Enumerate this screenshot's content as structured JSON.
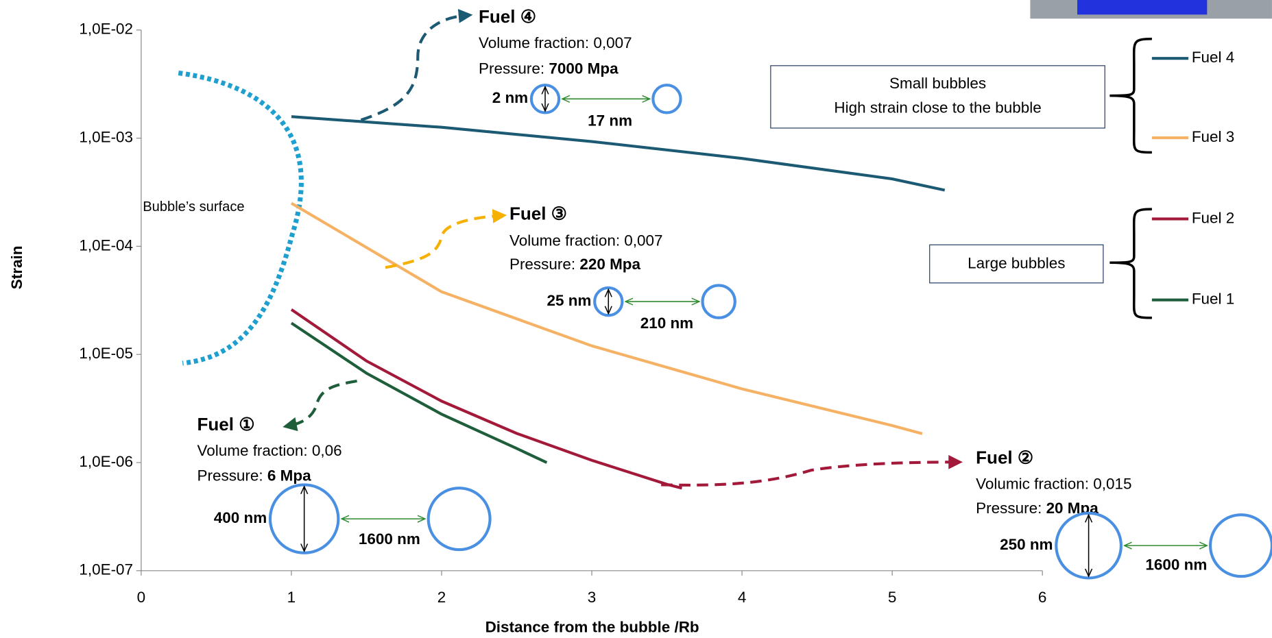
{
  "chart_data": {
    "type": "line",
    "log_y": true,
    "y_label": "Strain",
    "x_label": "Distance from the bubble  /Rb",
    "xlim": [
      0,
      6
    ],
    "xticks": [
      0,
      1,
      2,
      3,
      4,
      5,
      6
    ],
    "ylim": [
      1e-07,
      0.01
    ],
    "yticks": [
      {
        "value": 1e-07,
        "label": "1,0E-07"
      },
      {
        "value": 1e-06,
        "label": "1,0E-06"
      },
      {
        "value": 1e-05,
        "label": "1,0E-05"
      },
      {
        "value": 0.0001,
        "label": "1,0E-04"
      },
      {
        "value": 0.001,
        "label": "1,0E-03"
      },
      {
        "value": 0.01,
        "label": "1,0E-02"
      }
    ],
    "series": [
      {
        "name": "Fuel 4",
        "color": "#1b5a72",
        "x": [
          1,
          2,
          3,
          4,
          5,
          5.35
        ],
        "values": [
          0.00158,
          0.00126,
          0.00093,
          0.00065,
          0.00042,
          0.00033
        ]
      },
      {
        "name": "Fuel 3",
        "color": "#f6b264",
        "x": [
          1,
          2,
          3,
          4,
          5,
          5.2
        ],
        "values": [
          0.00025,
          3.8e-05,
          1.2e-05,
          4.8e-06,
          2.2e-06,
          1.85e-06
        ]
      },
      {
        "name": "Fuel 2",
        "color": "#a3193a",
        "x": [
          1,
          1.5,
          2,
          2.5,
          3,
          3.5,
          3.6
        ],
        "values": [
          2.6e-05,
          8.7e-06,
          3.7e-06,
          1.86e-06,
          1.05e-06,
          6.3e-07,
          5.8e-07
        ]
      },
      {
        "name": "Fuel 1",
        "color": "#1e5e3a",
        "x": [
          1,
          1.5,
          2,
          2.5,
          2.7
        ],
        "values": [
          1.95e-05,
          6.7e-06,
          2.8e-06,
          1.35e-06,
          1e-06
        ]
      }
    ],
    "surface_label": "Bubble’s surface",
    "groups": [
      {
        "lines": [
          "Small bubbles",
          "High strain close to the bubble"
        ]
      },
      {
        "lines": [
          "Large bubbles"
        ]
      }
    ],
    "annotations": [
      {
        "title": "Fuel ④",
        "color": "#1b5a72",
        "fraction": "Volume fraction: 0,007",
        "pressure_label": "Pressure: ",
        "pressure": "7000 Mpa",
        "diameter": "2 nm",
        "spacing": "17 nm"
      },
      {
        "title": "Fuel ③",
        "color": "#f6b000",
        "fraction": "Volume fraction: 0,007",
        "pressure_label": "Pressure: ",
        "pressure": "220 Mpa",
        "diameter": "25 nm",
        "spacing": "210 nm"
      },
      {
        "title": "Fuel ①",
        "color": "#1e5e3a",
        "fraction": "Volume fraction: 0,06",
        "pressure_label": "Pressure: ",
        "pressure": "6 Mpa",
        "diameter": "400 nm",
        "spacing": "1600 nm"
      },
      {
        "title": "Fuel ②",
        "color": "#a3193a",
        "fraction": "Volumic fraction: 0,015",
        "pressure_label": "Pressure: ",
        "pressure": "20 Mpa",
        "diameter": "250 nm",
        "spacing": "1600 nm"
      }
    ]
  }
}
